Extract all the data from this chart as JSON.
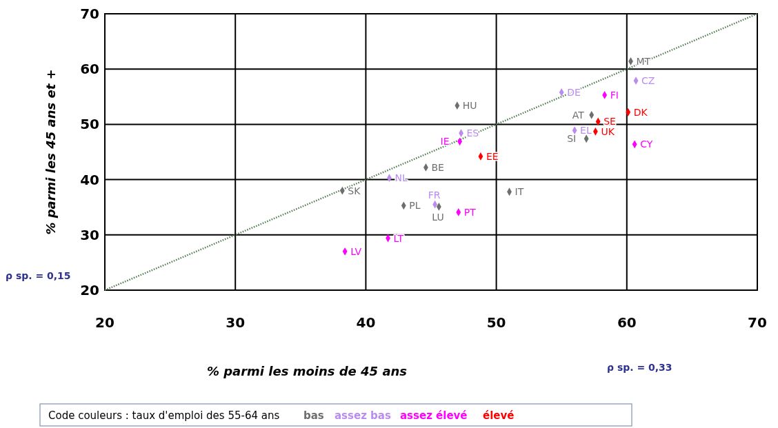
{
  "chart_data": {
    "type": "scatter",
    "xlabel": "% parmi les moins de 45 ans",
    "ylabel": "% parmi les 45 ans et +",
    "xlim": [
      20,
      70
    ],
    "ylim": [
      20,
      70
    ],
    "xticks": [
      20,
      30,
      40,
      50,
      60,
      70
    ],
    "yticks": [
      20,
      30,
      40,
      50,
      60,
      70
    ],
    "grid": true,
    "marker": "diamond",
    "legend": "bottom",
    "legend_title": "Code couleurs : taux d'emploi des 55-64 ans",
    "annotations": [
      "ρ sp. = 0,15",
      "ρ sp. = 0,33"
    ],
    "series": [
      {
        "type": "line",
        "color": "#4f7a4f",
        "line_style": "dotted",
        "marker": "none",
        "x": [
          20,
          70
        ],
        "values": [
          20,
          70
        ]
      },
      {
        "name": "bas",
        "color": "#6e6e6e",
        "x": [
          47.0,
          44.6,
          38.2,
          42.9,
          45.6,
          51.0,
          57.3,
          56.9,
          60.3
        ],
        "values": [
          53.4,
          42.2,
          38.0,
          35.3,
          35.1,
          37.8,
          51.7,
          47.4,
          61.4
        ],
        "value_labels": [
          "HU",
          "BE",
          "SK",
          "PL",
          "LU",
          "IT",
          "AT",
          "SI",
          "MT"
        ]
      },
      {
        "name": "assez bas",
        "color": "#b98cf0",
        "x": [
          47.3,
          41.8,
          45.3,
          55.0,
          56.0,
          60.7
        ],
        "values": [
          48.4,
          40.3,
          35.5,
          55.8,
          48.9,
          57.9
        ],
        "value_labels": [
          "ES",
          "NL",
          "FR",
          "DE",
          "EL",
          "CZ"
        ]
      },
      {
        "name": "assez élevé",
        "color": "#ff00ff",
        "x": [
          47.2,
          47.1,
          41.7,
          38.4,
          58.3,
          60.6
        ],
        "values": [
          46.9,
          34.1,
          29.4,
          27.0,
          55.3,
          46.4
        ],
        "value_labels": [
          "IE",
          "PT",
          "LT",
          "LV",
          "FI",
          "CY"
        ]
      },
      {
        "name": "élevé",
        "color": "#ff0000",
        "x": [
          48.8,
          57.8,
          57.6,
          60.1
        ],
        "values": [
          44.2,
          50.5,
          48.7,
          52.2
        ],
        "value_labels": [
          "EE",
          "SE",
          "UK",
          "DK"
        ]
      }
    ]
  }
}
